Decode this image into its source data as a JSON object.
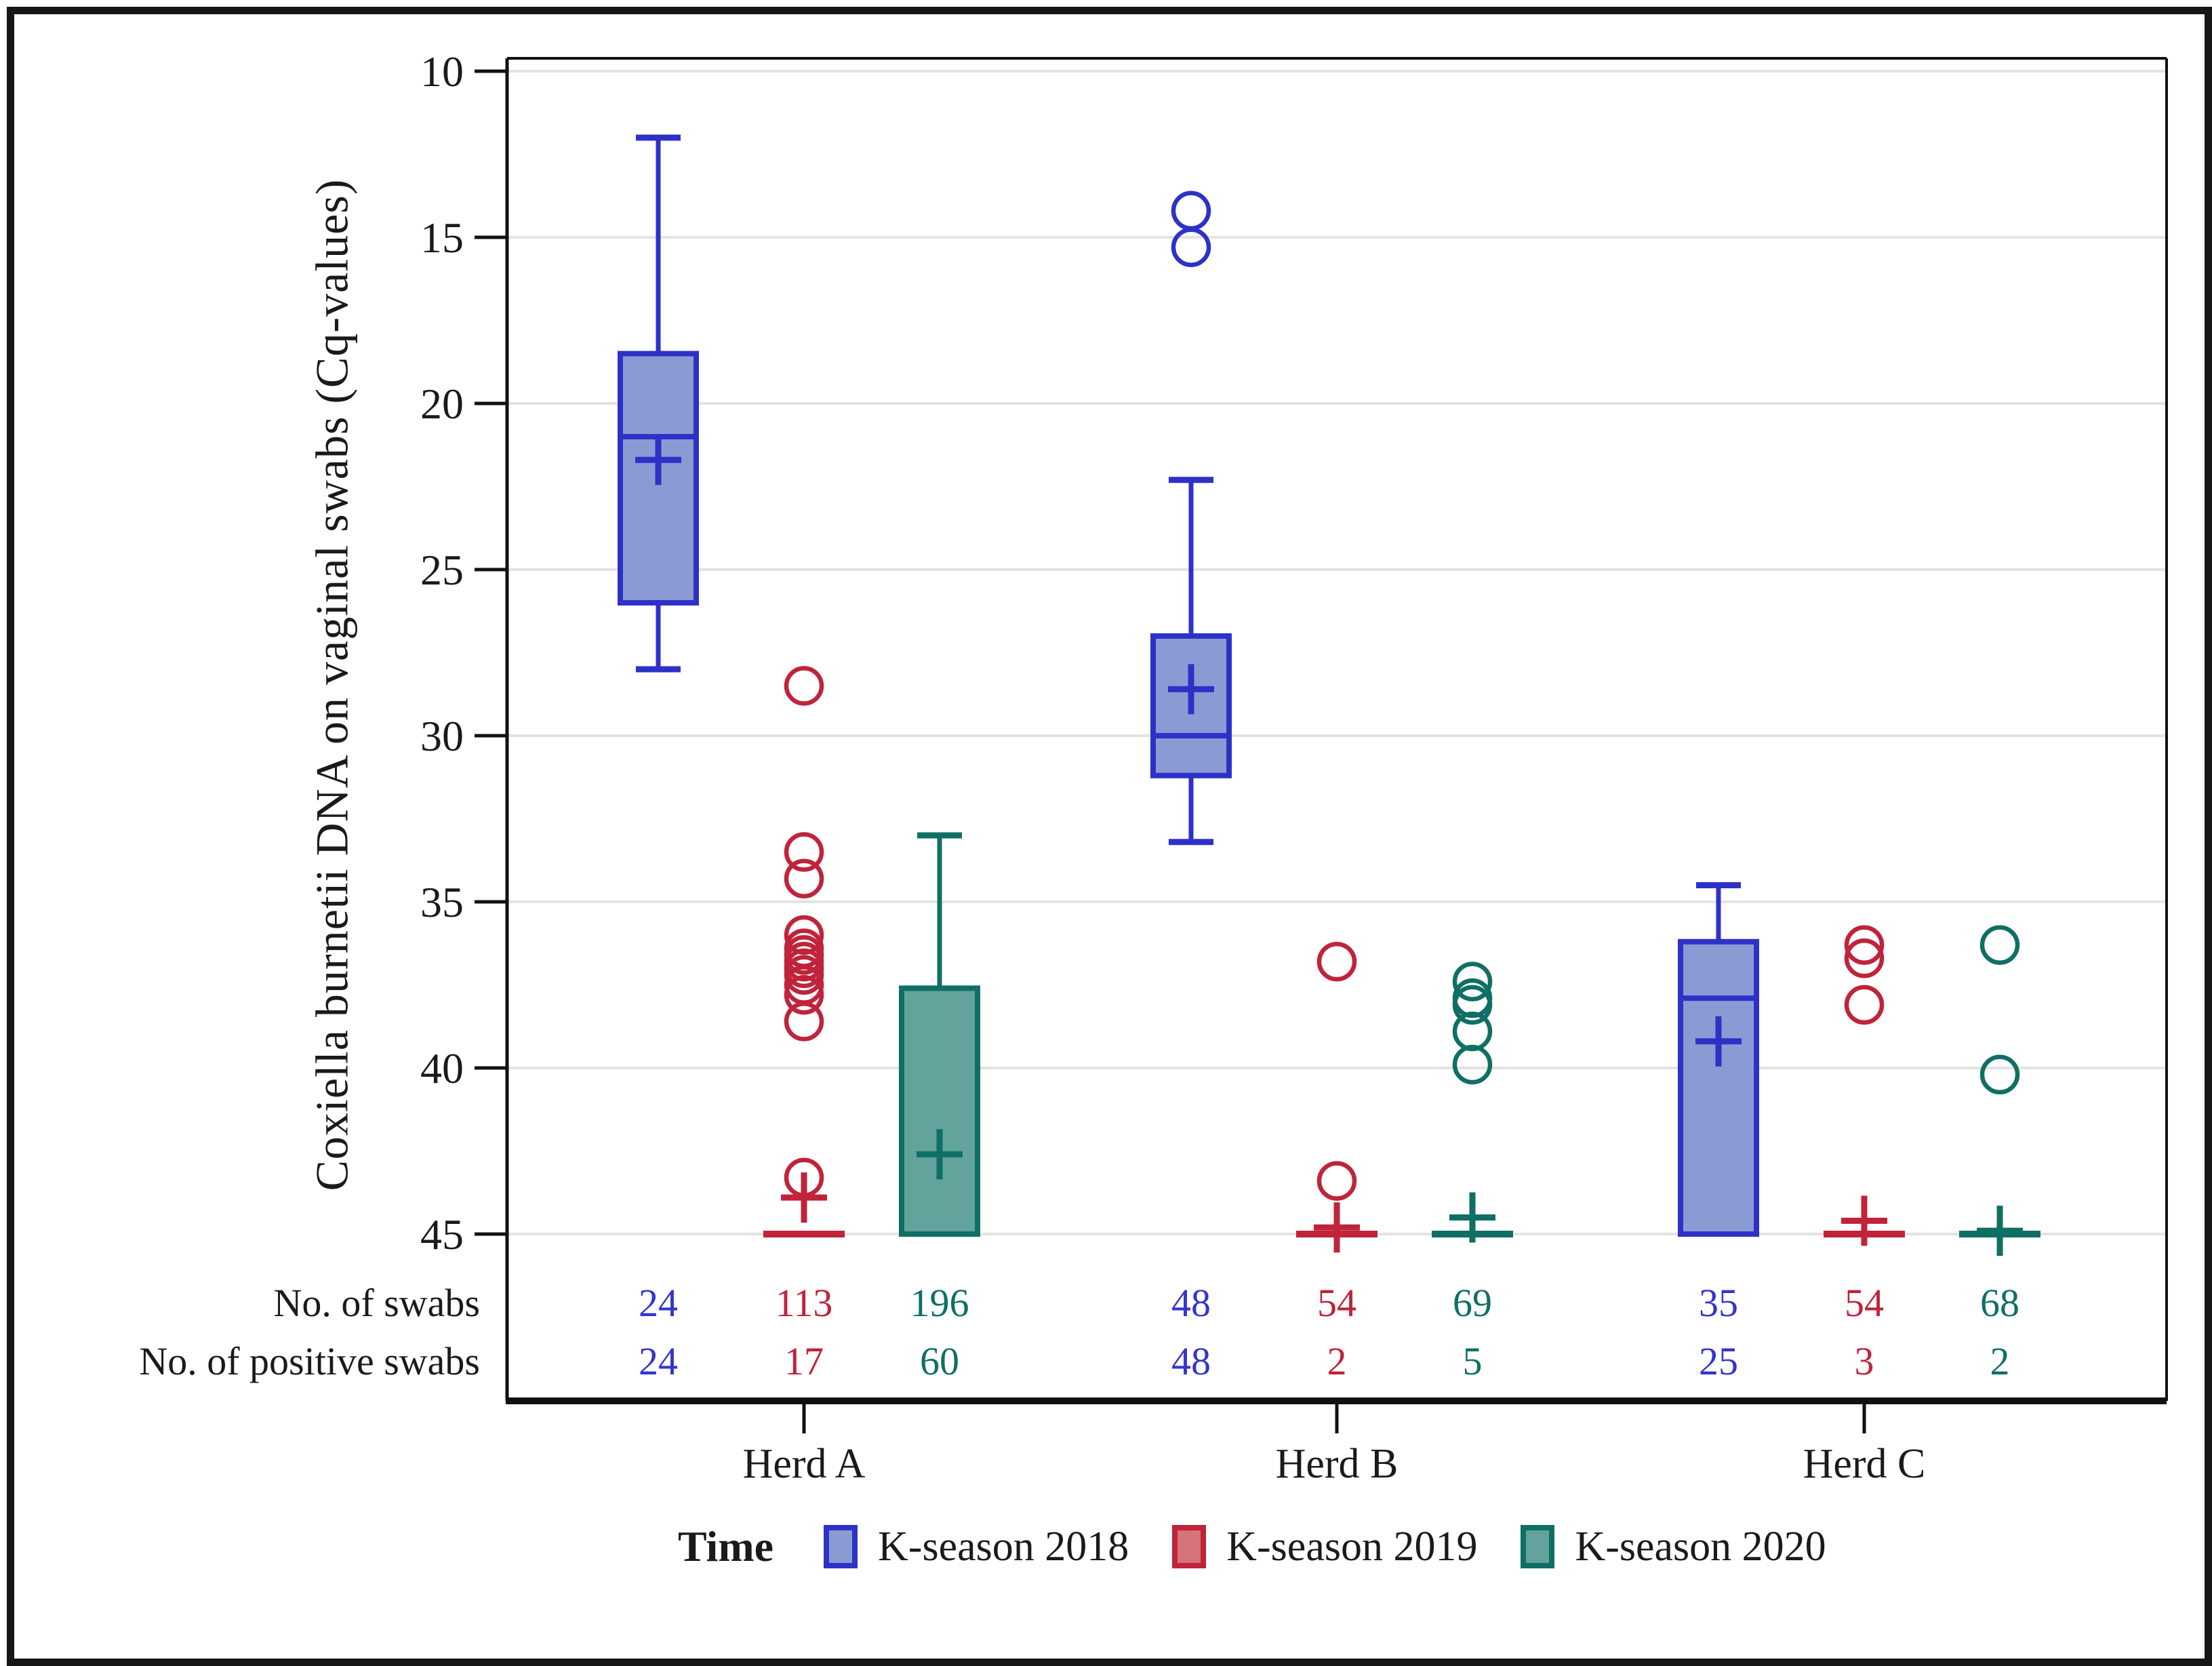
{
  "figure": {
    "background": "#ffffff",
    "border_color": "#161616"
  },
  "chart_data": {
    "type": "boxplot",
    "title": "",
    "ylabel": "Coxiella burnetii DNA on vaginal swabs (Cq-values)",
    "xlabel": "",
    "y_axis": {
      "ticks": [
        10,
        15,
        20,
        25,
        30,
        35,
        40,
        45
      ],
      "min": 10,
      "max": 45,
      "inverted": true,
      "grid": true,
      "gridline_color": "#e3e3e3"
    },
    "legend": {
      "title": "Time",
      "position": "bottom",
      "entries": [
        {
          "label": "K-season 2018",
          "fill": "#8A9BD3",
          "stroke": "#2E31C8"
        },
        {
          "label": "K-season 2019",
          "fill": "#D4737A",
          "stroke": "#C0233A"
        },
        {
          "label": "K-season 2020",
          "fill": "#62A39B",
          "stroke": "#0F6F64"
        }
      ]
    },
    "groups": [
      {
        "label": "Herd A",
        "boxes": [
          {
            "season": "K-season 2018",
            "series": 0,
            "whisker_low": 12,
            "q1": 18.5,
            "median": 21,
            "mean": 21.7,
            "q3": 26,
            "whisker_high": 28,
            "outliers": [],
            "n_swabs": 24,
            "n_positive": 24
          },
          {
            "season": "K-season 2019",
            "series": 1,
            "whisker_low": null,
            "q1": null,
            "median": 45,
            "mean": 43.9,
            "q3": null,
            "whisker_high": null,
            "outliers": [
              28.5,
              33.5,
              34.3,
              36.0,
              36.4,
              36.6,
              36.8,
              37.0,
              37.2,
              37.5,
              37.8,
              38.6,
              43.3
            ],
            "n_swabs": 113,
            "n_positive": 17
          },
          {
            "season": "K-season 2020",
            "series": 2,
            "whisker_low": 33,
            "q1": 37.6,
            "median": 45,
            "mean": 42.6,
            "q3": 45,
            "whisker_high": null,
            "outliers": [],
            "n_swabs": 196,
            "n_positive": 60
          }
        ]
      },
      {
        "label": "Herd B",
        "boxes": [
          {
            "season": "K-season 2018",
            "series": 0,
            "whisker_low": 22.3,
            "q1": 27,
            "median": 30,
            "mean": 28.6,
            "q3": 31.2,
            "whisker_high": 33.2,
            "outliers": [
              14.2,
              15.3
            ],
            "n_swabs": 48,
            "n_positive": 48
          },
          {
            "season": "K-season 2019",
            "series": 1,
            "whisker_low": null,
            "q1": null,
            "median": 45,
            "mean": 44.8,
            "q3": null,
            "whisker_high": null,
            "outliers": [
              36.8,
              43.4
            ],
            "n_swabs": 54,
            "n_positive": 2
          },
          {
            "season": "K-season 2020",
            "series": 2,
            "whisker_low": null,
            "q1": null,
            "median": 45,
            "mean": 44.5,
            "q3": null,
            "whisker_high": null,
            "outliers": [
              37.4,
              37.9,
              38.1,
              38.9,
              39.9
            ],
            "n_swabs": 69,
            "n_positive": 5
          }
        ]
      },
      {
        "label": "Herd C",
        "boxes": [
          {
            "season": "K-season 2018",
            "series": 0,
            "whisker_low": 34.5,
            "q1": 36.2,
            "median": 37.9,
            "mean": 39.2,
            "q3": 45,
            "whisker_high": null,
            "outliers": [],
            "n_swabs": 35,
            "n_positive": 25
          },
          {
            "season": "K-season 2019",
            "series": 1,
            "whisker_low": null,
            "q1": null,
            "median": 45,
            "mean": 44.6,
            "q3": null,
            "whisker_high": null,
            "outliers": [
              36.3,
              36.7,
              38.1
            ],
            "n_swabs": 54,
            "n_positive": 3
          },
          {
            "season": "K-season 2020",
            "series": 2,
            "whisker_low": null,
            "q1": null,
            "median": 45,
            "mean": 44.9,
            "q3": null,
            "whisker_high": null,
            "outliers": [
              36.3,
              40.2
            ],
            "n_swabs": 68,
            "n_positive": 2
          }
        ]
      }
    ],
    "table_rows": [
      {
        "label": "No. of swabs",
        "values": [
          24,
          113,
          196,
          48,
          54,
          69,
          35,
          54,
          68
        ]
      },
      {
        "label": "No. of positive swabs",
        "values": [
          24,
          17,
          60,
          48,
          2,
          5,
          25,
          3,
          2
        ]
      }
    ]
  }
}
